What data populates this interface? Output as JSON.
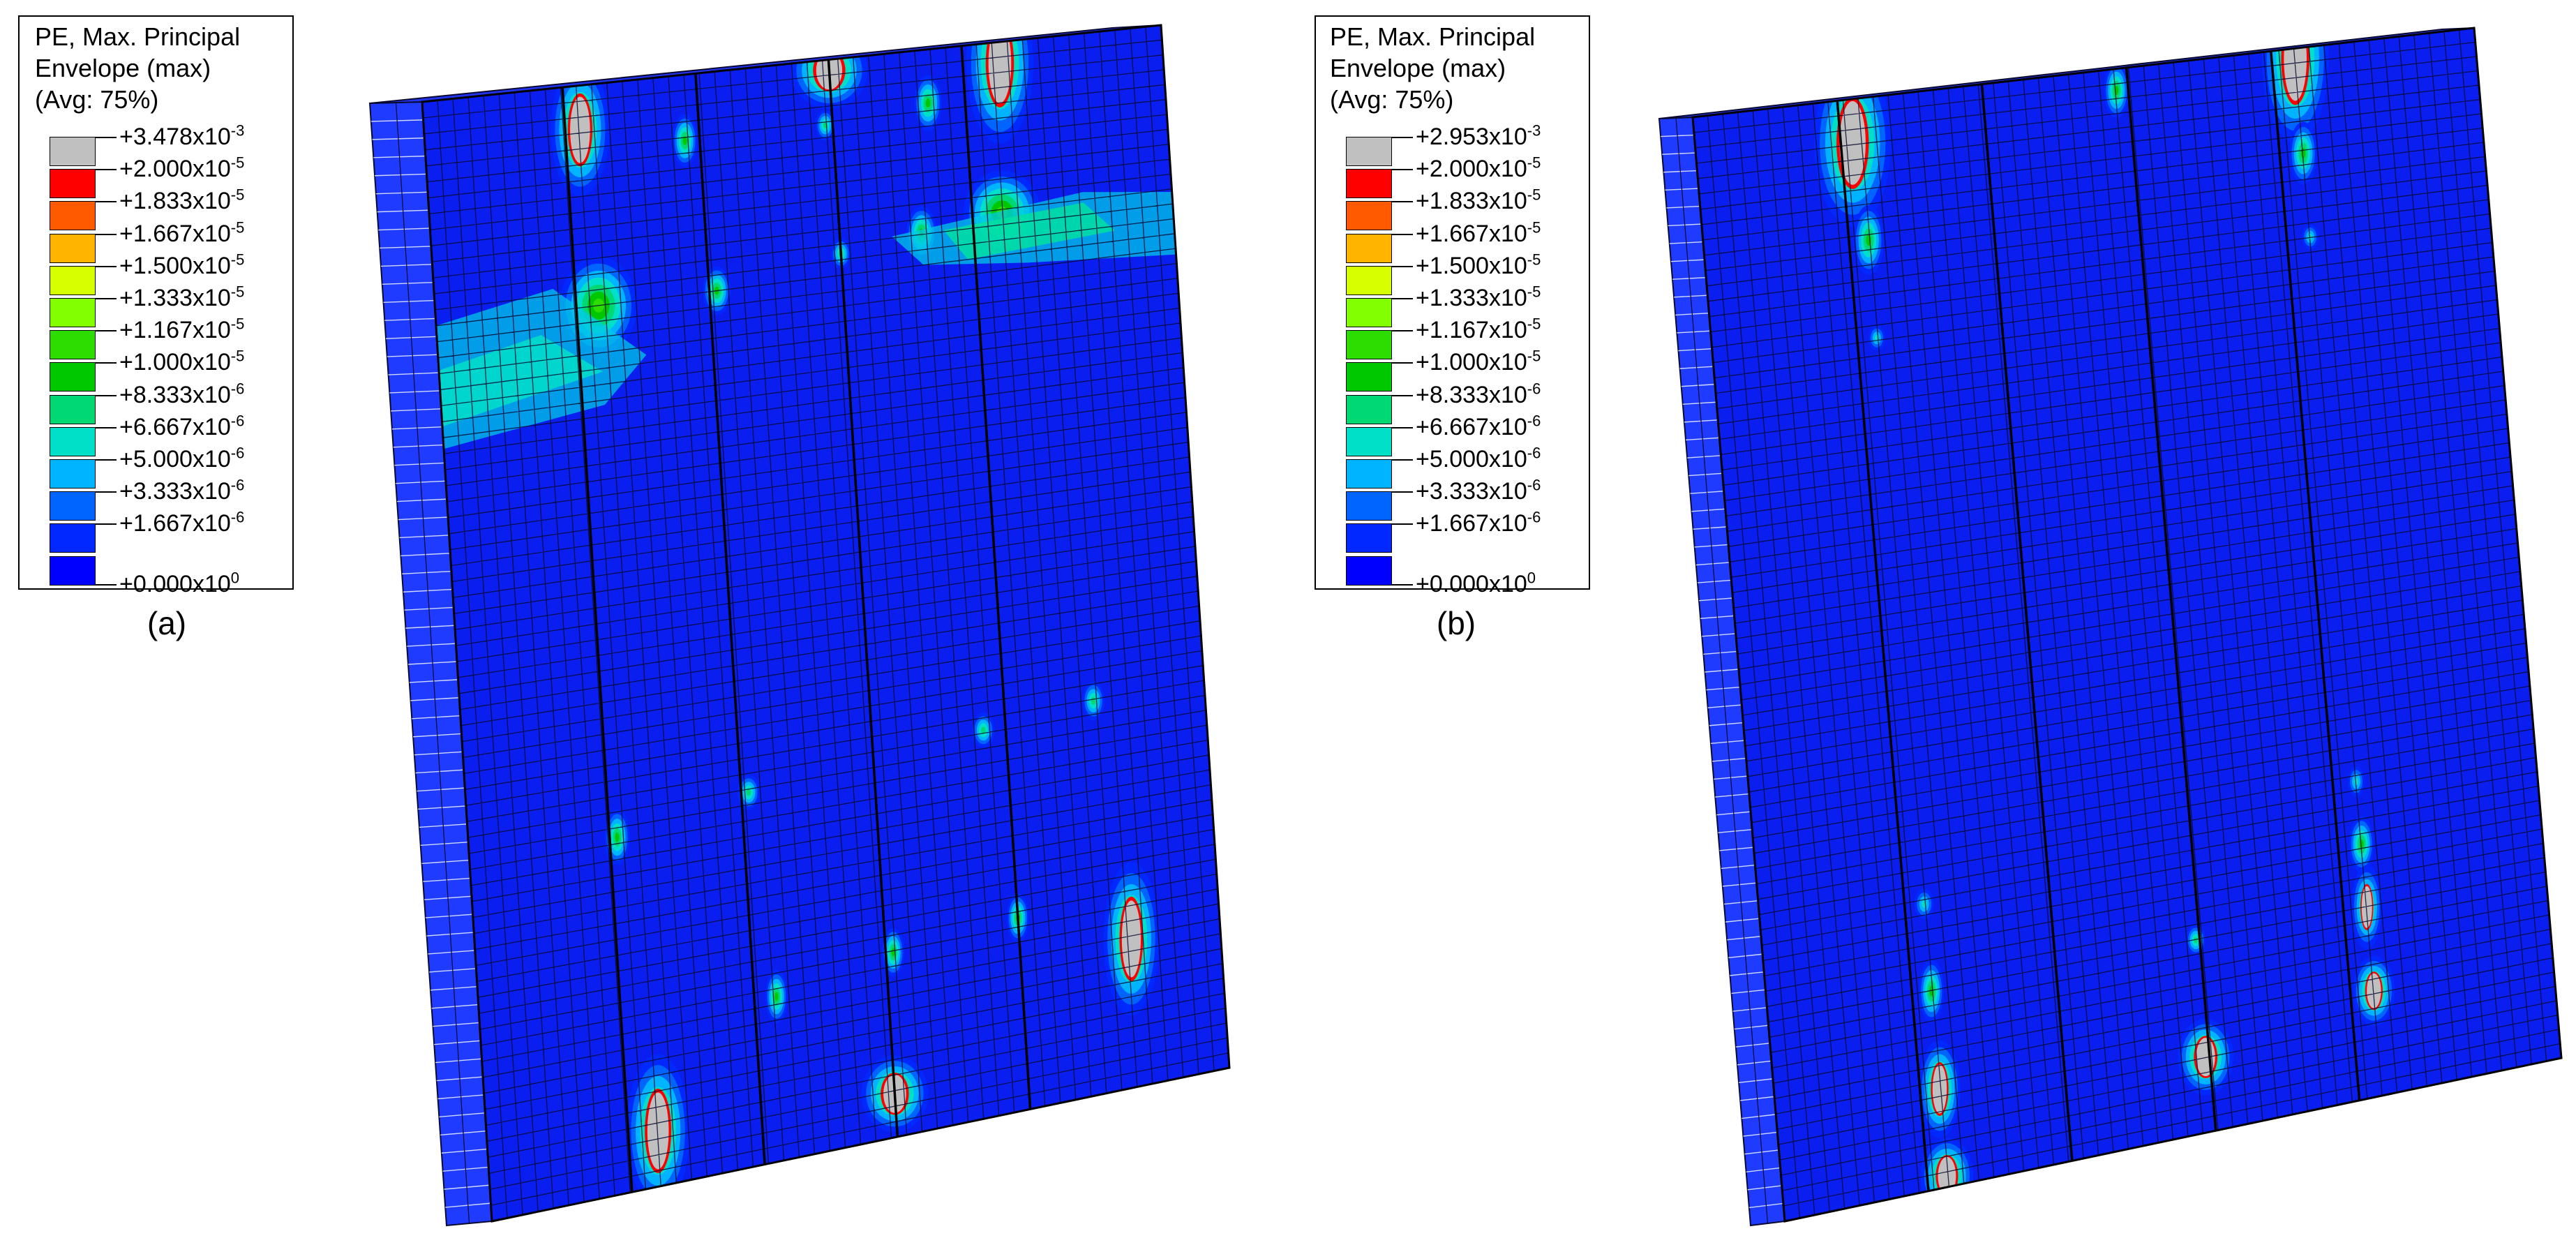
{
  "figures": [
    {
      "id": "a",
      "legend_title": [
        "PE, Max. Principal",
        "Envelope (max)",
        "(Avg: 75%)"
      ],
      "legend_labels": [
        {
          "base": "+3.478x10",
          "exp": "-3"
        },
        {
          "base": "+2.000x10",
          "exp": "-5"
        },
        {
          "base": "+1.833x10",
          "exp": "-5"
        },
        {
          "base": "+1.667x10",
          "exp": "-5"
        },
        {
          "base": "+1.500x10",
          "exp": "-5"
        },
        {
          "base": "+1.333x10",
          "exp": "-5"
        },
        {
          "base": "+1.167x10",
          "exp": "-5"
        },
        {
          "base": "+1.000x10",
          "exp": "-5"
        },
        {
          "base": "+8.333x10",
          "exp": "-6"
        },
        {
          "base": "+6.667x10",
          "exp": "-6"
        },
        {
          "base": "+5.000x10",
          "exp": "-6"
        },
        {
          "base": "+3.333x10",
          "exp": "-6"
        },
        {
          "base": "+1.667x10",
          "exp": "-6"
        },
        {
          "base": "+0.000x10",
          "exp": "0"
        }
      ],
      "caption": "(a)"
    },
    {
      "id": "b",
      "legend_title": [
        "PE, Max. Principal",
        "Envelope (max)",
        "(Avg: 75%)"
      ],
      "legend_labels": [
        {
          "base": "+2.953x10",
          "exp": "-3"
        },
        {
          "base": "+2.000x10",
          "exp": "-5"
        },
        {
          "base": "+1.833x10",
          "exp": "-5"
        },
        {
          "base": "+1.667x10",
          "exp": "-5"
        },
        {
          "base": "+1.500x10",
          "exp": "-5"
        },
        {
          "base": "+1.333x10",
          "exp": "-5"
        },
        {
          "base": "+1.167x10",
          "exp": "-5"
        },
        {
          "base": "+1.000x10",
          "exp": "-5"
        },
        {
          "base": "+8.333x10",
          "exp": "-6"
        },
        {
          "base": "+6.667x10",
          "exp": "-6"
        },
        {
          "base": "+5.000x10",
          "exp": "-6"
        },
        {
          "base": "+3.333x10",
          "exp": "-6"
        },
        {
          "base": "+1.667x10",
          "exp": "-6"
        },
        {
          "base": "+0.000x10",
          "exp": "0"
        }
      ],
      "caption": "(b)"
    }
  ],
  "colors": {
    "scale": [
      "#c0c0c0",
      "#ff0000",
      "#ff5a00",
      "#ffb400",
      "#d8ff00",
      "#82ff00",
      "#2ddc00",
      "#00c800",
      "#00d873",
      "#00e0c8",
      "#00b4ff",
      "#0064ff",
      "#0028ff",
      "#0000ff"
    ],
    "mesh_line": "#0a0a30",
    "plate_base": "#0a1ef0"
  }
}
